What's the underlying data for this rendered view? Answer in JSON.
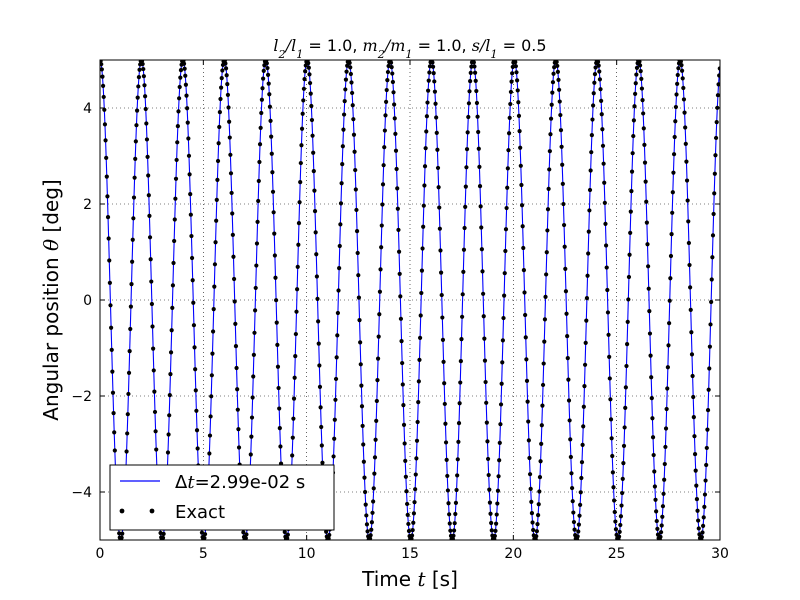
{
  "chart_data": {
    "type": "line",
    "title_parts": [
      {
        "text": "l",
        "math": true
      },
      {
        "text": "2",
        "sub": true,
        "math": true
      },
      {
        "text": "/",
        "math": true
      },
      {
        "text": "l",
        "math": true
      },
      {
        "text": "1",
        "sub": true,
        "math": true
      },
      {
        "text": " = 1.0, ",
        "math": false
      },
      {
        "text": "m",
        "math": true
      },
      {
        "text": "2",
        "sub": true,
        "math": true
      },
      {
        "text": "/",
        "math": true
      },
      {
        "text": "m",
        "math": true
      },
      {
        "text": "1",
        "sub": true,
        "math": true
      },
      {
        "text": " = 1.0, ",
        "math": false
      },
      {
        "text": "s/l",
        "math": true
      },
      {
        "text": "1",
        "sub": true,
        "math": true
      },
      {
        "text": " = 0.5",
        "math": false
      }
    ],
    "xlabel_parts": [
      {
        "text": "Time ",
        "math": false
      },
      {
        "text": "t",
        "math": true
      },
      {
        "text": " [s]",
        "math": false
      }
    ],
    "ylabel_parts": [
      {
        "text": "Angular position ",
        "math": false
      },
      {
        "text": "θ",
        "math": true
      },
      {
        "text": " [deg]",
        "math": false
      }
    ],
    "xlim": [
      0,
      30
    ],
    "ylim": [
      -5,
      5
    ],
    "xticks": [
      0,
      5,
      10,
      15,
      20,
      25,
      30
    ],
    "yticks": [
      -4,
      -2,
      0,
      2,
      4
    ],
    "grid": true,
    "grid_style": "dotted",
    "legend_position": "lower-left",
    "amplitude": 5,
    "period": 2.005,
    "dt": 0.0299,
    "series": [
      {
        "name_parts": [
          {
            "text": "Δ",
            "math": false
          },
          {
            "text": "t",
            "math": true
          },
          {
            "text": "=2.99e-02 s",
            "math": false
          }
        ],
        "style": "line",
        "color": "#0000ff"
      },
      {
        "name_parts": [
          {
            "text": "Exact",
            "math": false
          }
        ],
        "style": "dots",
        "color": "#000000"
      }
    ]
  }
}
